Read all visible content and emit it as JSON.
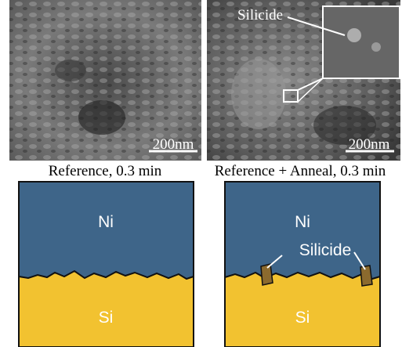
{
  "panels": [
    {
      "scale_bar": "200nm",
      "caption": "Reference, 0.3 min"
    },
    {
      "label": "Silicide",
      "scale_bar": "200nm",
      "caption": "Reference + Anneal, 0.3 min"
    }
  ],
  "schematics": [
    {
      "top": "Ni",
      "bottom": "Si"
    },
    {
      "top": "Ni",
      "label": "Silicide",
      "bottom": "Si"
    }
  ]
}
